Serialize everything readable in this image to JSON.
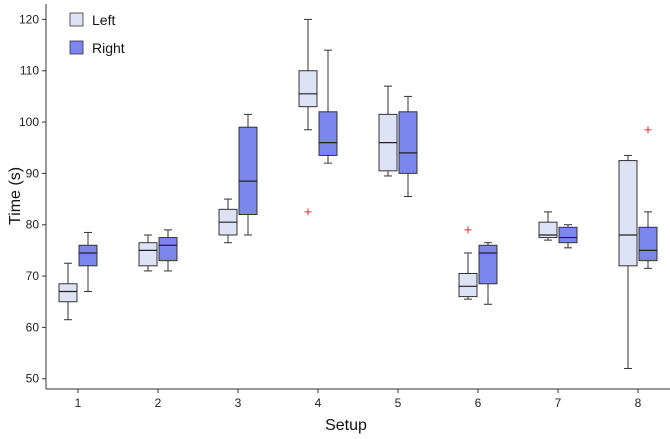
{
  "chart_data": {
    "type": "box",
    "xlabel": "Setup",
    "ylabel": "Time (s)",
    "ylim": [
      48,
      123
    ],
    "yticks": [
      50,
      60,
      70,
      80,
      90,
      100,
      110,
      120
    ],
    "categories": [
      "1",
      "2",
      "3",
      "4",
      "5",
      "6",
      "7",
      "8"
    ],
    "grid": false,
    "legend": "top-left",
    "series": [
      {
        "name": "Left",
        "color": "#dde3f5",
        "boxes": [
          {
            "whislo": 61.5,
            "q1": 65,
            "med": 67,
            "q3": 68.5,
            "whishi": 72.5,
            "fliers": []
          },
          {
            "whislo": 71,
            "q1": 72,
            "med": 75,
            "q3": 76.5,
            "whishi": 78,
            "fliers": []
          },
          {
            "whislo": 76.5,
            "q1": 78,
            "med": 80.5,
            "q3": 83,
            "whishi": 85,
            "fliers": []
          },
          {
            "whislo": 98.5,
            "q1": 103,
            "med": 105.5,
            "q3": 110,
            "whishi": 120,
            "fliers": [
              82.5
            ]
          },
          {
            "whislo": 89.5,
            "q1": 90.5,
            "med": 96,
            "q3": 101.5,
            "whishi": 107,
            "fliers": []
          },
          {
            "whislo": 65.5,
            "q1": 66,
            "med": 68,
            "q3": 70.5,
            "whishi": 74.5,
            "fliers": [
              79
            ]
          },
          {
            "whislo": 77,
            "q1": 77.5,
            "med": 78,
            "q3": 80.5,
            "whishi": 82.5,
            "fliers": []
          },
          {
            "whislo": 52,
            "q1": 72,
            "med": 78,
            "q3": 92.5,
            "whishi": 93.5,
            "fliers": []
          }
        ]
      },
      {
        "name": "Right",
        "color": "#7b86ee",
        "boxes": [
          {
            "whislo": 67,
            "q1": 72,
            "med": 74.5,
            "q3": 76,
            "whishi": 78.5,
            "fliers": []
          },
          {
            "whislo": 71,
            "q1": 73,
            "med": 76,
            "q3": 77.5,
            "whishi": 79,
            "fliers": []
          },
          {
            "whislo": 78,
            "q1": 82,
            "med": 88.5,
            "q3": 99,
            "whishi": 101.5,
            "fliers": []
          },
          {
            "whislo": 92,
            "q1": 93.5,
            "med": 96,
            "q3": 102,
            "whishi": 114,
            "fliers": []
          },
          {
            "whislo": 85.5,
            "q1": 90,
            "med": 94,
            "q3": 102,
            "whishi": 105,
            "fliers": []
          },
          {
            "whislo": 64.5,
            "q1": 68.5,
            "med": 74.5,
            "q3": 76,
            "whishi": 76.5,
            "fliers": []
          },
          {
            "whislo": 75.5,
            "q1": 76.5,
            "med": 77.5,
            "q3": 79.5,
            "whishi": 80,
            "fliers": []
          },
          {
            "whislo": 71.5,
            "q1": 73,
            "med": 75,
            "q3": 79.5,
            "whishi": 82.5,
            "fliers": [
              98.5
            ]
          }
        ]
      }
    ],
    "outlier_color": "#e03030"
  }
}
